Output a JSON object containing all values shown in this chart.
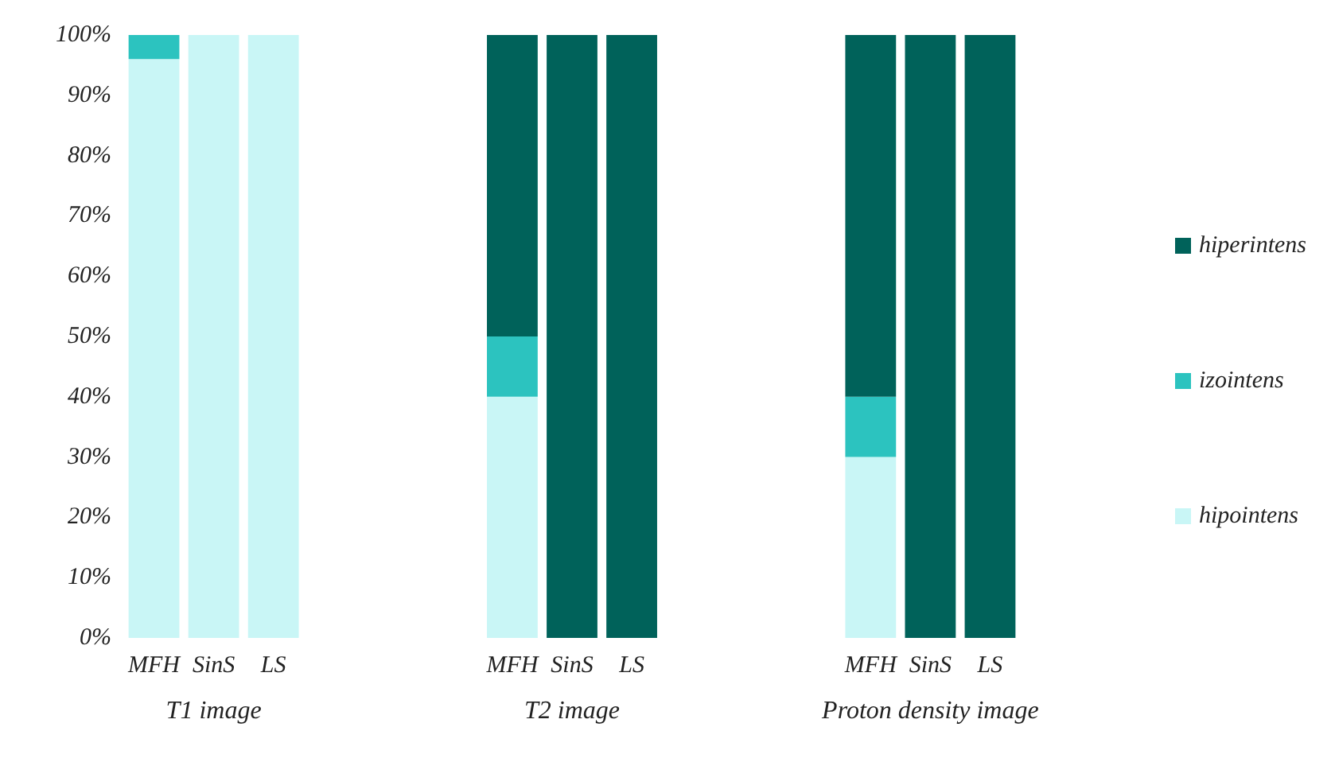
{
  "chart_data": {
    "type": "bar",
    "stacked": true,
    "categories": [
      "MFH",
      "SinS",
      "LS",
      null,
      null,
      null,
      "MFH",
      "SinS",
      "LS",
      null,
      null,
      null,
      "MFH",
      "SinS",
      "LS"
    ],
    "series": [
      {
        "name": "hipointens",
        "color": "#c9f6f6",
        "values": [
          96,
          100,
          100,
          null,
          null,
          null,
          40,
          0,
          0,
          null,
          null,
          null,
          30,
          0,
          0
        ]
      },
      {
        "name": "izointens",
        "color": "#2cc3bf",
        "values": [
          4,
          0,
          0,
          null,
          null,
          null,
          10,
          0,
          0,
          null,
          null,
          null,
          10,
          0,
          0
        ]
      },
      {
        "name": "hiperintens",
        "color": "#00625a",
        "values": [
          0,
          0,
          0,
          null,
          null,
          null,
          50,
          100,
          100,
          null,
          null,
          null,
          60,
          100,
          100
        ]
      }
    ],
    "ylim": [
      0,
      100
    ],
    "yticks": [
      {
        "value": 0,
        "label": "0%"
      },
      {
        "value": 10,
        "label": "10%"
      },
      {
        "value": 20,
        "label": "20%"
      },
      {
        "value": 30,
        "label": "30%"
      },
      {
        "value": 40,
        "label": "40%"
      },
      {
        "value": 50,
        "label": "50%"
      },
      {
        "value": 60,
        "label": "60%"
      },
      {
        "value": 70,
        "label": "70%"
      },
      {
        "value": 80,
        "label": "80%"
      },
      {
        "value": 90,
        "label": "90%"
      },
      {
        "value": 100,
        "label": "100%"
      }
    ],
    "annotations": [
      "T1 image",
      "T2 image",
      "Proton density image"
    ],
    "grid": false,
    "legend": "right"
  }
}
